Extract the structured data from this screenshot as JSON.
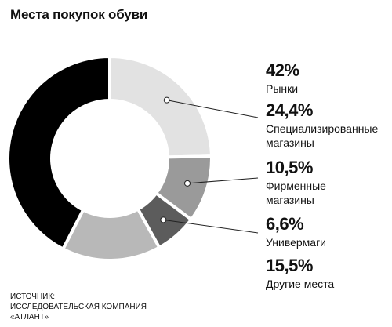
{
  "title": "Места покупок обуви",
  "chart_data": {
    "type": "pie",
    "title": "Места покупок обуви",
    "slices": [
      {
        "label": "Рынки",
        "value": 42,
        "value_text": "42%",
        "color": "#000000"
      },
      {
        "label": "Специализированные магазины",
        "value": 24.4,
        "value_text": "24,4%",
        "color": "#e2e2e2"
      },
      {
        "label": "Фирменные магазины",
        "value": 10.5,
        "value_text": "10,5%",
        "color": "#9a9a9a"
      },
      {
        "label": "Универмаги",
        "value": 6.6,
        "value_text": "6,6%",
        "color": "#5c5c5c"
      },
      {
        "label": "Другие места",
        "value": 15.5,
        "value_text": "15,5%",
        "color": "#b8b8b8"
      }
    ]
  },
  "legend": [
    {
      "pct": "42%",
      "name": "Рынки"
    },
    {
      "pct": "24,4%",
      "name": "Специализированные\nмагазины"
    },
    {
      "pct": "10,5%",
      "name": "Фирменные\nмагазины"
    },
    {
      "pct": "6,6%",
      "name": "Универмаги"
    },
    {
      "pct": "15,5%",
      "name": "Другие места"
    }
  ],
  "source": {
    "line1": "ИСТОЧНИК:",
    "line2": "ИССЛЕДОВАТЕЛЬСКАЯ КОМПАНИЯ",
    "line3": "«АТЛАНТ»"
  }
}
